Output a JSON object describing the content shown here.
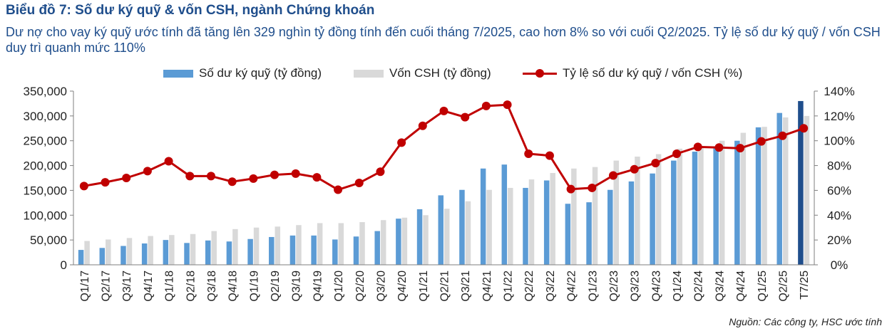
{
  "header": {
    "title": "Biểu đồ 7: Số dư ký quỹ & vốn CSH, ngành Chứng khoán",
    "subtitle": "Dư nợ cho vay ký quỹ ước tính đã tăng lên 329 nghìn tỷ đồng tính đến cuối tháng 7/2025, cao hơn 8% so với cuối Q2/2025. Tỷ lệ số dư ký quỹ / vốn CSH duy trì quanh mức 110%"
  },
  "source": "Nguồn: Các công ty, HSC ước tính",
  "colors": {
    "margin": "#5b9bd5",
    "margin_highlight": "#1f4e8c",
    "equity": "#d9d9d9",
    "ratio": "#c00000",
    "title": "#1f4e8c"
  },
  "chart_data": {
    "type": "bar",
    "categories": [
      "Q1/17",
      "Q2/17",
      "Q3/17",
      "Q4/17",
      "Q1/18",
      "Q2/18",
      "Q3/18",
      "Q4/18",
      "Q1/19",
      "Q2/19",
      "Q3/19",
      "Q4/19",
      "Q1/20",
      "Q2/20",
      "Q3/20",
      "Q4/20",
      "Q1/21",
      "Q2/21",
      "Q3/21",
      "Q4/21",
      "Q1/22",
      "Q2/22",
      "Q3/22",
      "Q4/22",
      "Q1/23",
      "Q2/23",
      "Q3/23",
      "Q4/23",
      "Q1/24",
      "Q2/24",
      "Q3/24",
      "Q4/24",
      "Q1/25",
      "Q2/25",
      "T7/25"
    ],
    "series": [
      {
        "name": "Số dư ký quỹ (tỷ đồng)",
        "type": "bar",
        "axis": "left",
        "highlight_last": true,
        "values": [
          30000,
          34000,
          38000,
          43000,
          50000,
          44000,
          49000,
          47000,
          52000,
          56000,
          59000,
          59000,
          51000,
          57000,
          68000,
          93000,
          112000,
          140000,
          151000,
          194000,
          202000,
          155000,
          170000,
          123000,
          126000,
          151000,
          168000,
          184000,
          210000,
          228000,
          236000,
          250000,
          277000,
          306000,
          330000
        ]
      },
      {
        "name": "Vốn CSH (tỷ đồng)",
        "type": "bar",
        "axis": "left",
        "values": [
          48000,
          51000,
          54000,
          58000,
          60000,
          62000,
          68000,
          72000,
          75000,
          77000,
          80000,
          84000,
          84000,
          86000,
          90000,
          95000,
          100000,
          113000,
          128000,
          151000,
          155000,
          172000,
          185000,
          194000,
          197000,
          210000,
          218000,
          223000,
          234000,
          238000,
          250000,
          266000,
          278000,
          297000,
          300000
        ]
      },
      {
        "name": "Tỷ lệ số dư ký quỹ / vốn CSH (%)",
        "type": "line",
        "axis": "right",
        "values": [
          63.5,
          66.5,
          70,
          75.5,
          83.5,
          71.5,
          71.5,
          67,
          69.5,
          72.5,
          73.5,
          70.5,
          60.5,
          66,
          75,
          98.5,
          112,
          124,
          119,
          128,
          129,
          89.5,
          88,
          61,
          62,
          72,
          77,
          82,
          89.5,
          95,
          94.5,
          94,
          99.5,
          104,
          110
        ]
      }
    ],
    "y_left": {
      "min": 0,
      "max": 350000,
      "ticks": [
        "0",
        "50,000",
        "100,000",
        "150,000",
        "200,000",
        "250,000",
        "300,000",
        "350,000"
      ]
    },
    "y_right": {
      "min": 0,
      "max": 140,
      "ticks": [
        "0%",
        "20%",
        "40%",
        "60%",
        "80%",
        "100%",
        "120%",
        "140%"
      ]
    },
    "legend_position": "top",
    "grid": false
  }
}
